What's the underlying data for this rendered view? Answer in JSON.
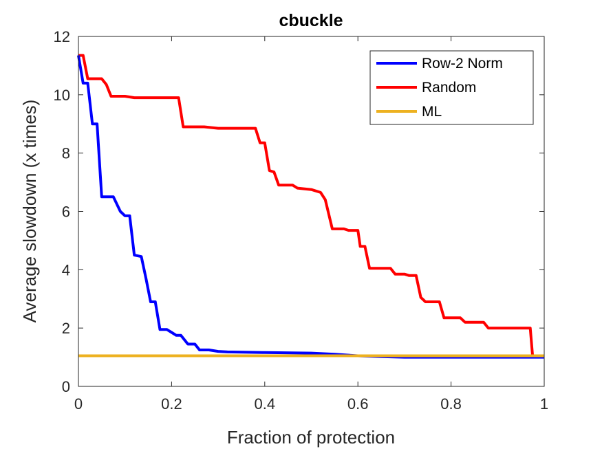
{
  "chart_data": {
    "type": "line",
    "title": "cbuckle",
    "xlabel": "Fraction of protection",
    "ylabel": "Average slowdown (x times)",
    "xlim": [
      0,
      1
    ],
    "ylim": [
      0,
      12
    ],
    "xticks": [
      0,
      0.2,
      0.4,
      0.6,
      0.8,
      1
    ],
    "xtick_labels": [
      "0",
      "0.2",
      "0.4",
      "0.6",
      "0.8",
      "1"
    ],
    "yticks": [
      0,
      2,
      4,
      6,
      8,
      10,
      12
    ],
    "ytick_labels": [
      "0",
      "2",
      "4",
      "6",
      "8",
      "10",
      "12"
    ],
    "grid": false,
    "legend_position": "top-right",
    "series": [
      {
        "name": "Row-2 Norm",
        "color": "#0000ff",
        "points": [
          [
            0.0,
            11.35
          ],
          [
            0.01,
            10.4
          ],
          [
            0.02,
            10.4
          ],
          [
            0.03,
            9.0
          ],
          [
            0.04,
            9.0
          ],
          [
            0.05,
            6.5
          ],
          [
            0.075,
            6.5
          ],
          [
            0.09,
            6.0
          ],
          [
            0.1,
            5.85
          ],
          [
            0.11,
            5.85
          ],
          [
            0.12,
            4.5
          ],
          [
            0.135,
            4.45
          ],
          [
            0.145,
            3.7
          ],
          [
            0.155,
            2.9
          ],
          [
            0.165,
            2.9
          ],
          [
            0.175,
            1.95
          ],
          [
            0.19,
            1.95
          ],
          [
            0.2,
            1.85
          ],
          [
            0.21,
            1.75
          ],
          [
            0.22,
            1.75
          ],
          [
            0.235,
            1.45
          ],
          [
            0.25,
            1.45
          ],
          [
            0.26,
            1.25
          ],
          [
            0.28,
            1.25
          ],
          [
            0.3,
            1.2
          ],
          [
            0.32,
            1.18
          ],
          [
            0.4,
            1.16
          ],
          [
            0.5,
            1.14
          ],
          [
            0.55,
            1.1
          ],
          [
            0.6,
            1.05
          ],
          [
            0.65,
            1.02
          ],
          [
            0.7,
            1.0
          ],
          [
            0.8,
            1.0
          ],
          [
            1.0,
            1.0
          ]
        ]
      },
      {
        "name": "Random",
        "color": "#ff0000",
        "points": [
          [
            0.0,
            11.35
          ],
          [
            0.01,
            11.35
          ],
          [
            0.02,
            10.55
          ],
          [
            0.05,
            10.55
          ],
          [
            0.06,
            10.35
          ],
          [
            0.07,
            9.95
          ],
          [
            0.1,
            9.95
          ],
          [
            0.12,
            9.9
          ],
          [
            0.21,
            9.9
          ],
          [
            0.215,
            9.9
          ],
          [
            0.225,
            8.9
          ],
          [
            0.27,
            8.9
          ],
          [
            0.3,
            8.85
          ],
          [
            0.32,
            8.85
          ],
          [
            0.35,
            8.85
          ],
          [
            0.38,
            8.85
          ],
          [
            0.39,
            8.35
          ],
          [
            0.4,
            8.35
          ],
          [
            0.41,
            7.4
          ],
          [
            0.42,
            7.35
          ],
          [
            0.43,
            6.9
          ],
          [
            0.46,
            6.9
          ],
          [
            0.47,
            6.8
          ],
          [
            0.5,
            6.75
          ],
          [
            0.52,
            6.65
          ],
          [
            0.53,
            6.4
          ],
          [
            0.545,
            5.4
          ],
          [
            0.57,
            5.4
          ],
          [
            0.58,
            5.35
          ],
          [
            0.6,
            5.35
          ],
          [
            0.605,
            4.8
          ],
          [
            0.615,
            4.8
          ],
          [
            0.625,
            4.05
          ],
          [
            0.67,
            4.05
          ],
          [
            0.68,
            3.85
          ],
          [
            0.7,
            3.85
          ],
          [
            0.71,
            3.8
          ],
          [
            0.725,
            3.8
          ],
          [
            0.735,
            3.05
          ],
          [
            0.745,
            2.9
          ],
          [
            0.775,
            2.9
          ],
          [
            0.785,
            2.35
          ],
          [
            0.82,
            2.35
          ],
          [
            0.83,
            2.2
          ],
          [
            0.87,
            2.2
          ],
          [
            0.88,
            2.0
          ],
          [
            0.97,
            2.0
          ],
          [
            0.975,
            1.05
          ],
          [
            1.0,
            1.05
          ]
        ]
      },
      {
        "name": "ML",
        "color": "#edb120",
        "points": [
          [
            0.0,
            1.05
          ],
          [
            1.0,
            1.05
          ]
        ]
      }
    ]
  }
}
